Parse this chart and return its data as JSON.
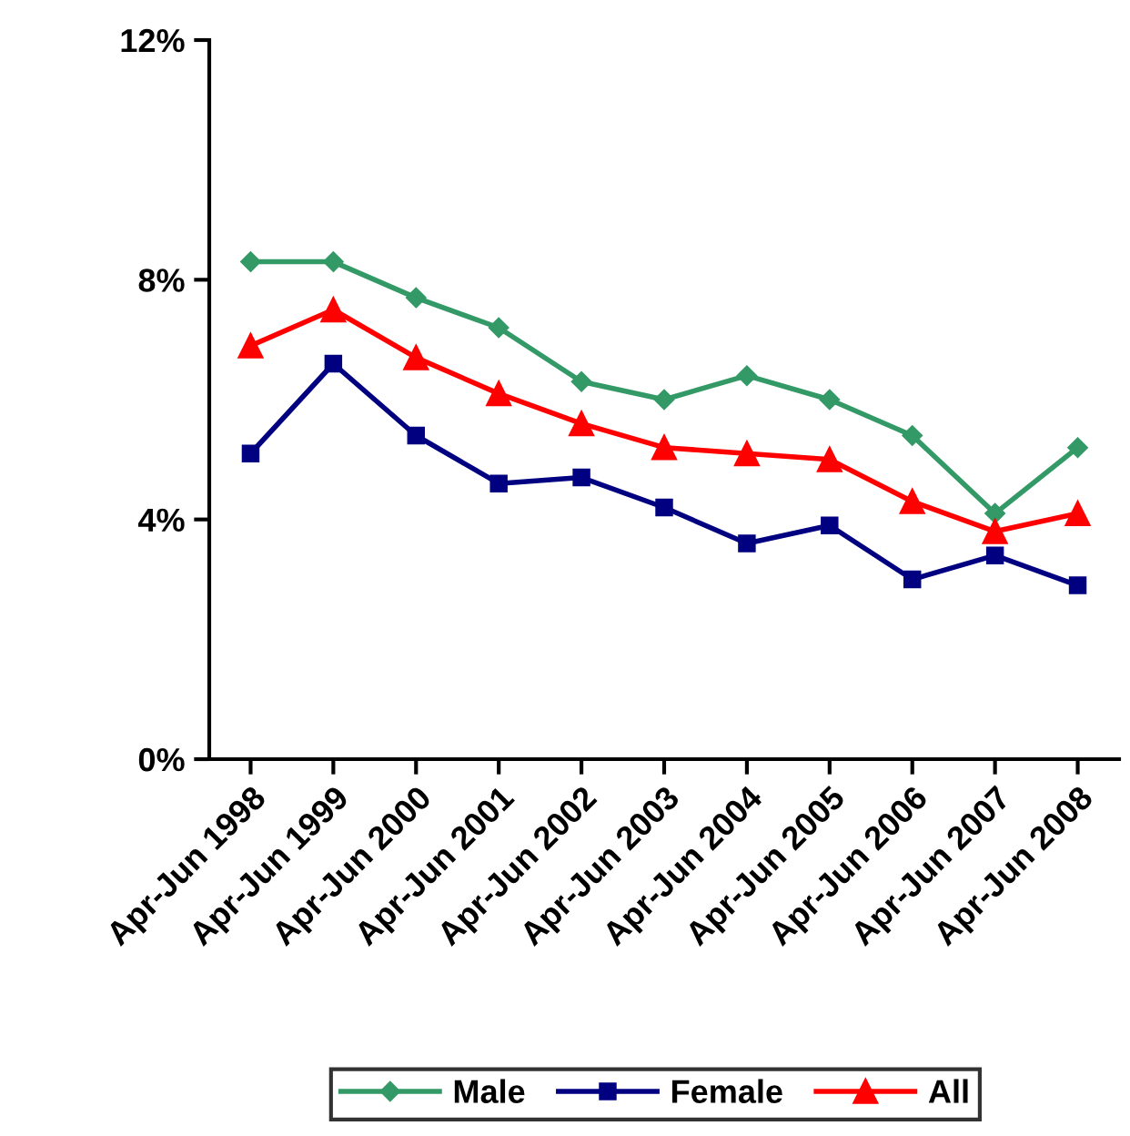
{
  "chart_data": {
    "type": "line",
    "categories": [
      "Apr-Jun 1998",
      "Apr-Jun 1999",
      "Apr-Jun 2000",
      "Apr-Jun 2001",
      "Apr-Jun 2002",
      "Apr-Jun 2003",
      "Apr-Jun 2004",
      "Apr-Jun 2005",
      "Apr-Jun 2006",
      "Apr-Jun 2007",
      "Apr-Jun 2008"
    ],
    "series": [
      {
        "name": "Male",
        "color": "#339966",
        "marker": "diamond",
        "values": [
          8.3,
          8.3,
          7.7,
          7.2,
          6.3,
          6.0,
          6.4,
          6.0,
          5.4,
          4.1,
          5.2
        ]
      },
      {
        "name": "Female",
        "color": "#000080",
        "marker": "square",
        "values": [
          5.1,
          6.6,
          5.4,
          4.6,
          4.7,
          4.2,
          3.6,
          3.9,
          3.0,
          3.4,
          2.9
        ]
      },
      {
        "name": "All",
        "color": "#ff0000",
        "marker": "triangle",
        "values": [
          6.9,
          7.5,
          6.7,
          6.1,
          5.6,
          5.2,
          5.1,
          5.0,
          4.3,
          3.8,
          4.1
        ]
      }
    ],
    "ylim": [
      0,
      12
    ],
    "yticks": [
      {
        "value": 0,
        "label": "0%"
      },
      {
        "value": 4,
        "label": "4%"
      },
      {
        "value": 8,
        "label": "8%"
      },
      {
        "value": 12,
        "label": "12%"
      }
    ],
    "grid": false,
    "legend": "bottom",
    "line_style": "solid"
  }
}
